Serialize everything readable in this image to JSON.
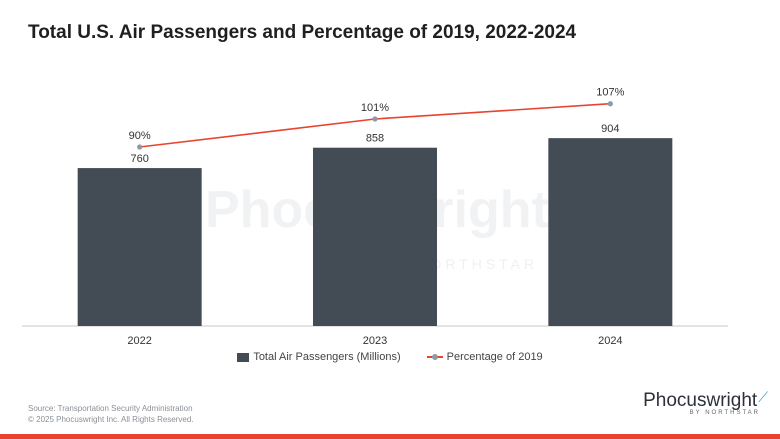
{
  "title": "Total U.S. Air Passengers and Percentage of 2019, 2022-2024",
  "watermark": {
    "main": "Phocuswright",
    "sub": "BY NORTHSTAR"
  },
  "source": {
    "line1": "Source: Transportation Security Administration",
    "line2": "© 2025 Phocuswright Inc. All Rights Reserved."
  },
  "logo": {
    "main": "Phocuswright",
    "sub": "BY NORTHSTAR"
  },
  "colors": {
    "bar": "#434c54",
    "line": "#e8432f",
    "marker": "#8c9aa8",
    "axis": "#c9c9c9",
    "footer_bar": "#e8432f"
  },
  "chart_data": {
    "type": "bar",
    "title": "Total U.S. Air Passengers and Percentage of 2019, 2022-2024",
    "categories": [
      "2022",
      "2023",
      "2024"
    ],
    "series": [
      {
        "name": "Total Air Passengers (Millions)",
        "type": "bar",
        "values": [
          760,
          858,
          904
        ],
        "labels": [
          "760",
          "858",
          "904"
        ]
      },
      {
        "name": "Percentage of 2019",
        "type": "line",
        "values": [
          90,
          101,
          107
        ],
        "labels": [
          "90%",
          "101%",
          "107%"
        ]
      }
    ],
    "y_left_range": [
      0,
      1000
    ],
    "y_right_range": [
      0,
      110
    ],
    "grid": false,
    "legend": "bottom"
  }
}
